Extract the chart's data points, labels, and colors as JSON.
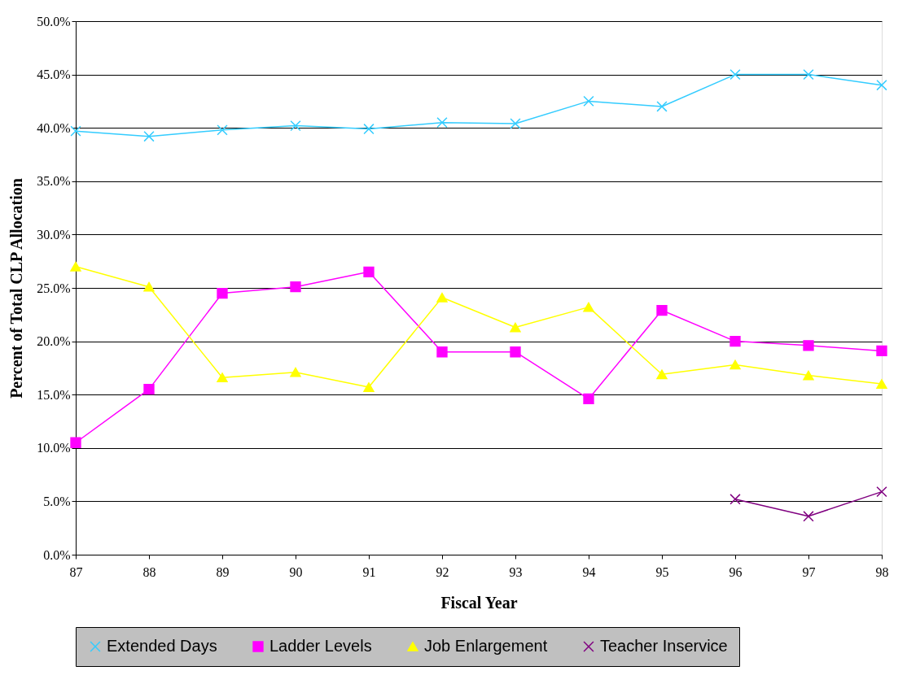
{
  "chart_data": {
    "type": "line",
    "xlabel": "Fiscal Year",
    "ylabel": "Percent of Total CLP Allocation",
    "categories": [
      "87",
      "88",
      "89",
      "90",
      "91",
      "92",
      "93",
      "94",
      "95",
      "96",
      "97",
      "98"
    ],
    "series": [
      {
        "name": "Extended Days",
        "color": "#33ccff",
        "marker": "cross",
        "values": [
          39.7,
          39.2,
          39.8,
          40.2,
          39.9,
          40.5,
          40.4,
          42.5,
          42.0,
          45.0,
          45.0,
          44.0
        ]
      },
      {
        "name": "Ladder Levels",
        "color": "#ff00ff",
        "marker": "square",
        "values": [
          10.5,
          15.5,
          24.5,
          25.1,
          26.5,
          19.0,
          19.0,
          14.6,
          22.9,
          20.0,
          19.6,
          19.1
        ]
      },
      {
        "name": "Job Enlargement",
        "color": "#ffff00",
        "marker": "triangle",
        "values": [
          27.0,
          25.1,
          16.6,
          17.1,
          15.7,
          24.1,
          21.3,
          23.2,
          16.9,
          17.8,
          16.8,
          16.0
        ]
      },
      {
        "name": "Teacher Inservice",
        "color": "#800080",
        "marker": "cross",
        "values": [
          null,
          null,
          null,
          null,
          null,
          null,
          null,
          null,
          null,
          5.2,
          3.6,
          5.9
        ]
      }
    ],
    "ylim": [
      0,
      50
    ],
    "yticks": [
      {
        "value": 0,
        "label": "0.0%"
      },
      {
        "value": 5,
        "label": "5.0%"
      },
      {
        "value": 10,
        "label": "10.0%"
      },
      {
        "value": 15,
        "label": "15.0%"
      },
      {
        "value": 20,
        "label": "20.0%"
      },
      {
        "value": 25,
        "label": "25.0%"
      },
      {
        "value": 30,
        "label": "30.0%"
      },
      {
        "value": 35,
        "label": "35.0%"
      },
      {
        "value": 40,
        "label": "40.0%"
      },
      {
        "value": 45,
        "label": "45.0%"
      },
      {
        "value": 50,
        "label": "50.0%"
      }
    ],
    "grid": "y",
    "legend": "bottom",
    "line_style": "solid"
  }
}
